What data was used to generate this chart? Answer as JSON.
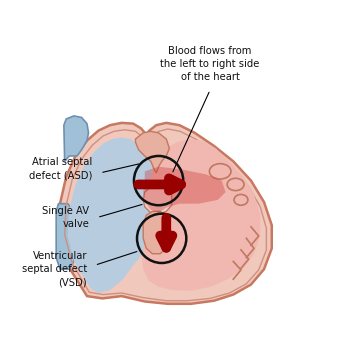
{
  "background_color": "#ffffff",
  "heart_fill": "#f2c8c0",
  "heart_border": "#c87860",
  "left_chamber_fill": "#b8d0e8",
  "right_chamber_fill": "#f0b8b0",
  "wall_fill": "#e8b0a0",
  "blue_vessel_fill": "#a0c0d8",
  "blue_vessel_border": "#7090b0",
  "arrow_color": "#990000",
  "circle_color": "#111111",
  "text_color": "#111111",
  "label_asd": "Atrial septal\ndefect (ASD)",
  "label_av": "Single AV\nvalve",
  "label_vsd": "Ventricular\nseptal defect\n(VSD)",
  "label_blood": "Blood flows from\nthe left to right side\nof the heart",
  "figsize": [
    3.5,
    3.5
  ],
  "dpi": 100
}
